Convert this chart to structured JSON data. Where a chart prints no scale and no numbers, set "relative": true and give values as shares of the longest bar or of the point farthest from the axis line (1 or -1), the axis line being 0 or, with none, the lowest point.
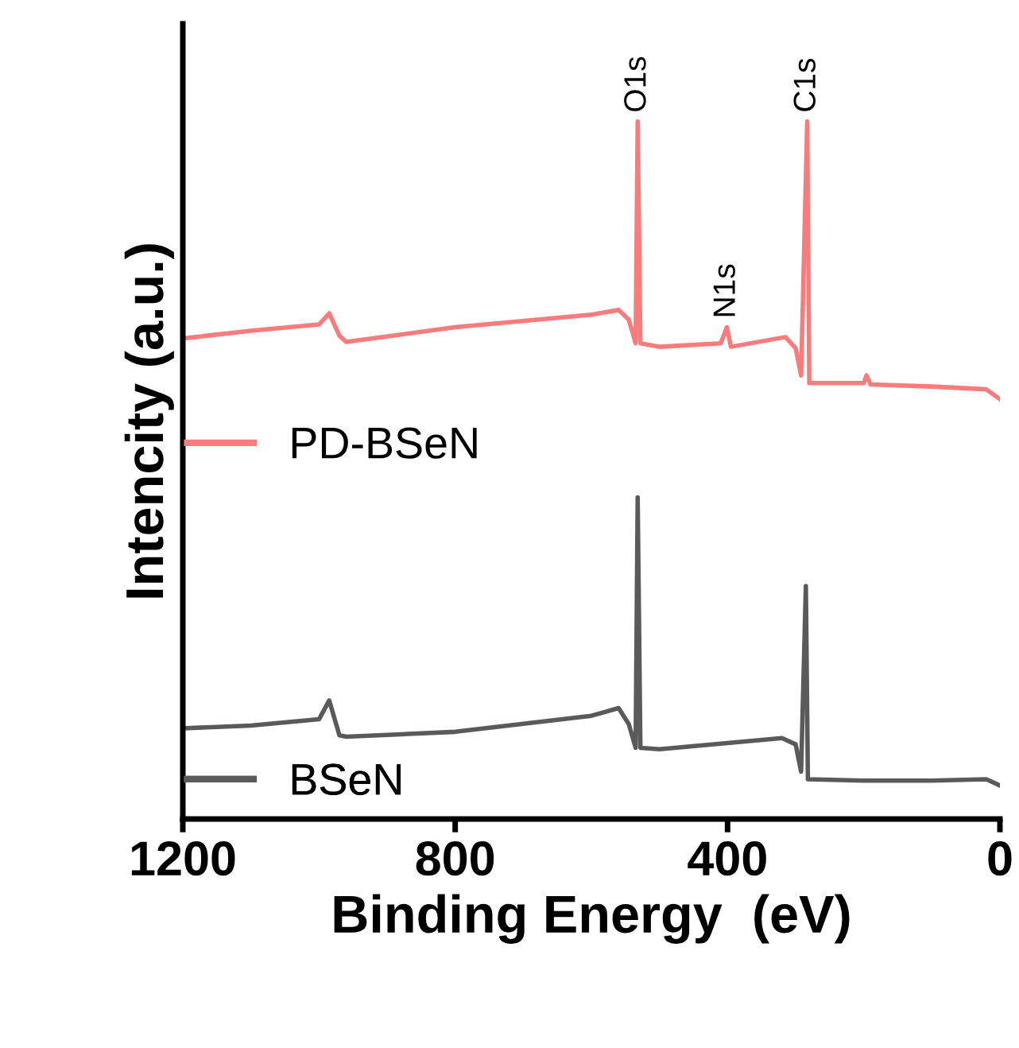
{
  "chart_data": {
    "type": "line",
    "relative": true,
    "xlabel": "Binding Energy  (eV)",
    "ylabel": "Intencity (a.u.)",
    "xlim": [
      1200,
      0
    ],
    "xticks": [
      1200,
      800,
      400,
      0
    ],
    "grid": false,
    "legend": "left",
    "tick_labels": "x",
    "series": [
      {
        "name": "PD-BSeN",
        "color": "#f87c7c",
        "x": [
          1200,
          1100,
          1000,
          985,
          970,
          960,
          800,
          600,
          560,
          545,
          535,
          532,
          528,
          500,
          410,
          401,
          395,
          315,
          300,
          292,
          283,
          280,
          250,
          200,
          196,
          190,
          100,
          20,
          0
        ],
        "values": [
          0.689,
          0.7,
          0.709,
          0.725,
          0.693,
          0.684,
          0.705,
          0.723,
          0.73,
          0.716,
          0.682,
          1,
          0.682,
          0.677,
          0.682,
          0.705,
          0.677,
          0.691,
          0.675,
          0.636,
          1,
          0.625,
          0.625,
          0.625,
          0.636,
          0.623,
          0.62,
          0.616,
          0.602
        ]
      },
      {
        "name": "BSeN",
        "color": "#5a5a5a",
        "x": [
          1200,
          1100,
          1000,
          985,
          970,
          960,
          800,
          600,
          560,
          545,
          535,
          532,
          528,
          500,
          320,
          300,
          292,
          285,
          282,
          200,
          100,
          20,
          0
        ],
        "values": [
          0.13,
          0.134,
          0.143,
          0.17,
          0.12,
          0.118,
          0.125,
          0.148,
          0.159,
          0.136,
          0.102,
          0.461,
          0.102,
          0.1,
          0.116,
          0.107,
          0.068,
          0.334,
          0.057,
          0.055,
          0.055,
          0.057,
          0.048
        ]
      }
    ],
    "annotations": [
      {
        "text": "O1s",
        "x": 532,
        "y": 1
      },
      {
        "text": "N1s",
        "x": 401,
        "y": 0.705
      },
      {
        "text": "C1s",
        "x": 283,
        "y": 1
      }
    ]
  }
}
